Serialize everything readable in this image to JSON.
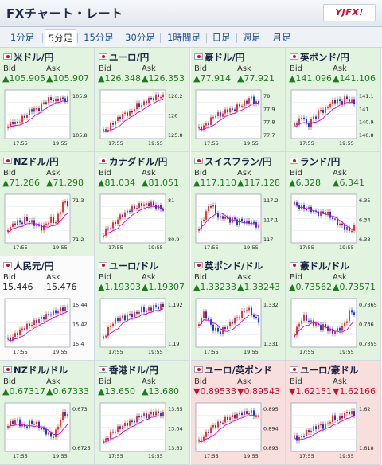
{
  "header": {
    "title": "FXチャート・レート",
    "logo_text": "YJFX!"
  },
  "tabs": [
    {
      "label": "1分足"
    },
    {
      "label": "5分足"
    },
    {
      "label": "15分足"
    },
    {
      "label": "30分足"
    },
    {
      "label": "1時間足"
    },
    {
      "label": "日足"
    },
    {
      "label": "週足"
    },
    {
      "label": "月足"
    }
  ],
  "active_tab": "5分足",
  "bid_label": "Bid",
  "ask_label": "Ask",
  "colors": {
    "up": "#1f7a1f",
    "down": "#c8102e",
    "candle_up": "#e53935",
    "candle_down": "#1e40c8",
    "ma": "#d600d6"
  },
  "pairs": [
    {
      "name": "米ドル/円",
      "bid": "▲105.905",
      "ask": "▲105.907",
      "trend": "up",
      "bg": "green",
      "chart_data": {
        "type": "candlestick",
        "ticks": [
          "105.9",
          "105.8"
        ],
        "times": [
          "17:55",
          "19:55"
        ],
        "shape": [
          0.25,
          0.35,
          0.3,
          0.4,
          0.45,
          0.55,
          0.62,
          0.58,
          0.72,
          0.78,
          0.82,
          0.76,
          0.84,
          0.8,
          0.82
        ]
      }
    },
    {
      "name": "ユーロ/円",
      "bid": "▲126.348",
      "ask": "▲126.353",
      "trend": "up",
      "bg": "green",
      "chart_data": {
        "type": "candlestick",
        "ticks": [
          "126.2",
          "126",
          "125.8"
        ],
        "times": [
          "17:55",
          "19:55"
        ],
        "shape": [
          0.15,
          0.2,
          0.3,
          0.38,
          0.45,
          0.52,
          0.5,
          0.6,
          0.7,
          0.68,
          0.78,
          0.82,
          0.85,
          0.88,
          0.86
        ]
      }
    },
    {
      "name": "豪ドル/円",
      "bid": "▲77.914",
      "ask": "▲77.921",
      "trend": "up",
      "bg": "green",
      "chart_data": {
        "type": "candlestick",
        "ticks": [
          "78",
          "77.9",
          "77.8",
          "77.7"
        ],
        "times": [
          "17:55",
          "19:55"
        ],
        "shape": [
          0.2,
          0.25,
          0.3,
          0.42,
          0.5,
          0.48,
          0.55,
          0.6,
          0.58,
          0.66,
          0.7,
          0.74,
          0.86,
          0.75,
          0.72
        ]
      }
    },
    {
      "name": "英ポンド/円",
      "bid": "▲141.096",
      "ask": "▲141.106",
      "trend": "up",
      "bg": "green",
      "chart_data": {
        "type": "candlestick",
        "ticks": [
          "141.1",
          "141",
          "140.9",
          "140.8"
        ],
        "times": [
          "17:55",
          "19:55"
        ],
        "shape": [
          0.3,
          0.35,
          0.5,
          0.2,
          0.4,
          0.45,
          0.6,
          0.55,
          0.7,
          0.75,
          0.8,
          0.72,
          0.85,
          0.78,
          0.74
        ]
      }
    },
    {
      "name": "NZドル/円",
      "bid": "▲71.286",
      "ask": "▲71.298",
      "trend": "up",
      "bg": "green",
      "chart_data": {
        "type": "candlestick",
        "ticks": [
          "71.3",
          "71.2"
        ],
        "times": [
          "17:55",
          "19:55"
        ],
        "shape": [
          0.3,
          0.35,
          0.45,
          0.4,
          0.5,
          0.45,
          0.4,
          0.35,
          0.3,
          0.4,
          0.5,
          0.4,
          0.6,
          0.85,
          0.8
        ]
      }
    },
    {
      "name": "カナダドル/円",
      "bid": "▲81.034",
      "ask": "▲81.051",
      "trend": "up",
      "bg": "green",
      "chart_data": {
        "type": "candlestick",
        "ticks": [
          "81",
          "80.9"
        ],
        "times": [
          "17:55",
          "19:55"
        ],
        "shape": [
          0.2,
          0.3,
          0.35,
          0.45,
          0.55,
          0.6,
          0.68,
          0.72,
          0.75,
          0.8,
          0.78,
          0.82,
          0.76,
          0.72,
          0.7
        ]
      }
    },
    {
      "name": "スイスフラン/円",
      "bid": "▲117.110",
      "ask": "▲117.128",
      "trend": "up",
      "bg": "green",
      "chart_data": {
        "type": "candlestick",
        "ticks": [
          "117.2",
          "117.1",
          "117"
        ],
        "times": [
          "17:55",
          "19:55"
        ],
        "shape": [
          0.3,
          0.5,
          0.7,
          0.82,
          0.6,
          0.5,
          0.55,
          0.45,
          0.5,
          0.42,
          0.48,
          0.4,
          0.45,
          0.38,
          0.35
        ]
      }
    },
    {
      "name": "ランド/円",
      "bid": "▲6.328",
      "ask": "▲6.341",
      "trend": "up",
      "bg": "green",
      "chart_data": {
        "type": "candlestick",
        "ticks": [
          "6.35",
          "6.34",
          "6.33"
        ],
        "times": [
          "17:55",
          "19:55"
        ],
        "shape": [
          0.8,
          0.75,
          0.72,
          0.7,
          0.68,
          0.62,
          0.6,
          0.65,
          0.58,
          0.5,
          0.42,
          0.35,
          0.3,
          0.25,
          0.32
        ]
      }
    },
    {
      "name": "人民元/円",
      "bid": "15.446",
      "ask": "15.476",
      "trend": "plain",
      "bg": "white",
      "chart_data": {
        "type": "candlestick",
        "ticks": [
          "15.44",
          "15.42",
          "15.4"
        ],
        "times": [
          "17:55",
          "19:55"
        ],
        "shape": [
          0.15,
          0.2,
          0.28,
          0.35,
          0.42,
          0.45,
          0.5,
          0.55,
          0.6,
          0.65,
          0.7,
          0.72,
          0.76,
          0.8,
          0.82
        ]
      }
    },
    {
      "name": "ユーロ/ドル",
      "bid": "▲1.19303",
      "ask": "▲1.19307",
      "trend": "up",
      "bg": "green",
      "chart_data": {
        "type": "candlestick",
        "ticks": [
          "1.192",
          "1.19"
        ],
        "times": [
          "17:55",
          "19:55"
        ],
        "shape": [
          0.2,
          0.35,
          0.5,
          0.55,
          0.62,
          0.6,
          0.68,
          0.66,
          0.72,
          0.78,
          0.75,
          0.8,
          0.84,
          0.82,
          0.86
        ]
      }
    },
    {
      "name": "英ポンド/ドル",
      "bid": "▲1.33233",
      "ask": "▲1.33243",
      "trend": "up",
      "bg": "green",
      "chart_data": {
        "type": "candlestick",
        "ticks": [
          "1.332",
          "1.331"
        ],
        "times": [
          "17:55",
          "19:55"
        ],
        "shape": [
          0.5,
          0.7,
          0.6,
          0.4,
          0.35,
          0.3,
          0.4,
          0.45,
          0.55,
          0.6,
          0.7,
          0.8,
          0.75,
          0.6,
          0.55
        ]
      }
    },
    {
      "name": "豪ドル/ドル",
      "bid": "▲0.73562",
      "ask": "▲0.73571",
      "trend": "up",
      "bg": "green",
      "chart_data": {
        "type": "candlestick",
        "ticks": [
          "0.7365",
          "0.736",
          "0.7355"
        ],
        "times": [
          "17:55",
          "19:55"
        ],
        "shape": [
          0.3,
          0.45,
          0.65,
          0.55,
          0.5,
          0.48,
          0.4,
          0.45,
          0.35,
          0.3,
          0.35,
          0.4,
          0.5,
          0.75,
          0.7
        ]
      }
    },
    {
      "name": "NZドル/ドル",
      "bid": "▲0.67317",
      "ask": "▲0.67333",
      "trend": "up",
      "bg": "green",
      "chart_data": {
        "type": "candlestick",
        "ticks": [
          "0.673",
          "0.6725"
        ],
        "times": [
          "17:55",
          "19:55"
        ],
        "shape": [
          0.55,
          0.6,
          0.65,
          0.55,
          0.5,
          0.58,
          0.6,
          0.55,
          0.45,
          0.4,
          0.3,
          0.35,
          0.6,
          0.8,
          0.75
        ]
      }
    },
    {
      "name": "香港ドル/円",
      "bid": "▲13.650",
      "ask": "▲13.680",
      "trend": "up",
      "bg": "green",
      "chart_data": {
        "type": "candlestick",
        "ticks": [
          "13.65",
          "13.64",
          "13.63"
        ],
        "times": [
          "17:55",
          "19:55"
        ],
        "shape": [
          0.2,
          0.3,
          0.4,
          0.45,
          0.5,
          0.55,
          0.6,
          0.62,
          0.7,
          0.75,
          0.72,
          0.78,
          0.8,
          0.78,
          0.76
        ]
      }
    },
    {
      "name": "ユーロ/英ポンド",
      "bid": "▼0.89533",
      "ask": "▼0.89543",
      "trend": "down",
      "bg": "pink",
      "chart_data": {
        "type": "candlestick",
        "ticks": [
          "0.895",
          "0.894",
          "0.893"
        ],
        "times": [
          "17:55",
          "19:55"
        ],
        "shape": [
          0.2,
          0.3,
          0.4,
          0.5,
          0.55,
          0.6,
          0.65,
          0.7,
          0.72,
          0.75,
          0.8,
          0.78,
          0.82,
          0.75,
          0.7
        ]
      }
    },
    {
      "name": "ユーロ/豪ドル",
      "bid": "▼1.62151",
      "ask": "▼1.62166",
      "trend": "down",
      "bg": "pink",
      "chart_data": {
        "type": "candlestick",
        "ticks": [
          "1.62",
          "1.618"
        ],
        "times": [
          "17:55",
          "19:55"
        ],
        "shape": [
          0.3,
          0.25,
          0.35,
          0.4,
          0.45,
          0.5,
          0.55,
          0.5,
          0.6,
          0.7,
          0.65,
          0.72,
          0.78,
          0.82,
          0.75
        ]
      }
    }
  ]
}
